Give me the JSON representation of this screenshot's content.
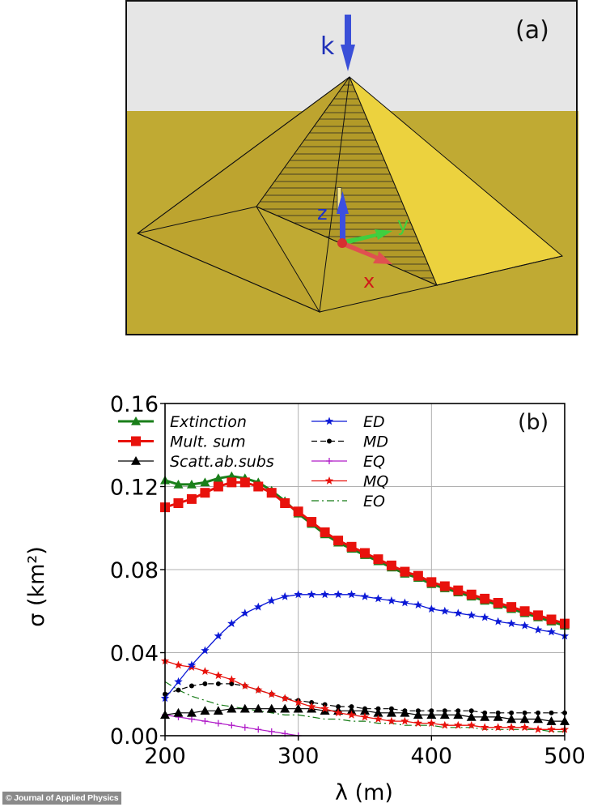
{
  "figure": {
    "panel_a": {
      "label": "(a)",
      "wave_vector_label": "k",
      "axis_labels": {
        "x": "x",
        "y": "y",
        "z": "z"
      },
      "colors": {
        "sky": "#e6e6e6",
        "ground": "#c0aa33",
        "pyramid_shaded": "#bfa62e",
        "pyramid_lit": "#ecd23e",
        "k_arrow": "#3a4fd8",
        "x_axis": "#d62828",
        "y_axis": "#3fcf3f",
        "z_axis": "#3c4fe0"
      }
    },
    "panel_b": {
      "label": "(b)"
    },
    "credit": "© Journal of Applied Physics"
  },
  "chart_data": {
    "type": "line",
    "title": "",
    "panel_label": "(b)",
    "xlabel": "λ (m)",
    "ylabel": "σ (km²)",
    "xlim": [
      200,
      500
    ],
    "ylim": [
      0.0,
      0.16
    ],
    "xticks": [
      200,
      300,
      400,
      500
    ],
    "xtick_labels": [
      "200",
      "300",
      "400",
      "500"
    ],
    "yticks": [
      0.0,
      0.04,
      0.08,
      0.12,
      0.16
    ],
    "ytick_labels": [
      "0.00",
      "0.04",
      "0.08",
      "0.12",
      "0.16"
    ],
    "grid": true,
    "legend_position": "upper left, two columns",
    "x": [
      200,
      210,
      220,
      230,
      240,
      250,
      260,
      270,
      280,
      290,
      300,
      310,
      320,
      330,
      340,
      350,
      360,
      370,
      380,
      390,
      400,
      410,
      420,
      430,
      440,
      450,
      460,
      470,
      480,
      490,
      500
    ],
    "series": [
      {
        "name": "Extinction",
        "legend": "Extinction",
        "color": "#1a7f1a",
        "marker": "triangle",
        "linestyle": "solid",
        "width": 3,
        "values": [
          0.123,
          0.121,
          0.121,
          0.122,
          0.124,
          0.125,
          0.124,
          0.122,
          0.118,
          0.113,
          0.107,
          0.102,
          0.097,
          0.093,
          0.09,
          0.087,
          0.084,
          0.081,
          0.078,
          0.076,
          0.073,
          0.071,
          0.069,
          0.067,
          0.065,
          0.063,
          0.061,
          0.059,
          0.057,
          0.055,
          0.053
        ]
      },
      {
        "name": "Mult. sum",
        "legend": "Mult. sum",
        "color": "#e8120c",
        "marker": "square",
        "linestyle": "solid",
        "width": 3,
        "values": [
          0.11,
          0.112,
          0.114,
          0.117,
          0.12,
          0.122,
          0.122,
          0.12,
          0.117,
          0.112,
          0.108,
          0.103,
          0.098,
          0.094,
          0.091,
          0.088,
          0.085,
          0.082,
          0.079,
          0.077,
          0.074,
          0.072,
          0.07,
          0.068,
          0.066,
          0.064,
          0.062,
          0.06,
          0.058,
          0.056,
          0.054
        ]
      },
      {
        "name": "Scatt. ab. subs",
        "legend": "Scatt.ab.subs",
        "color": "#000000",
        "marker": "triangle",
        "linestyle": "solid",
        "width": 1.2,
        "values": [
          0.01,
          0.011,
          0.011,
          0.012,
          0.012,
          0.013,
          0.013,
          0.013,
          0.013,
          0.013,
          0.013,
          0.013,
          0.012,
          0.012,
          0.012,
          0.012,
          0.011,
          0.011,
          0.011,
          0.01,
          0.01,
          0.01,
          0.01,
          0.009,
          0.009,
          0.009,
          0.008,
          0.008,
          0.008,
          0.007,
          0.007
        ]
      },
      {
        "name": "ED",
        "legend": "ED",
        "color": "#0b18d6",
        "marker": "star",
        "linestyle": "solid",
        "width": 1.3,
        "values": [
          0.018,
          0.026,
          0.034,
          0.041,
          0.048,
          0.054,
          0.059,
          0.062,
          0.065,
          0.067,
          0.068,
          0.068,
          0.068,
          0.068,
          0.068,
          0.067,
          0.066,
          0.065,
          0.064,
          0.063,
          0.061,
          0.06,
          0.059,
          0.058,
          0.057,
          0.055,
          0.054,
          0.053,
          0.051,
          0.05,
          0.048
        ]
      },
      {
        "name": "MD",
        "legend": "MD",
        "color": "#000000",
        "marker": "dot",
        "linestyle": "dashed",
        "width": 1.2,
        "values": [
          0.02,
          0.022,
          0.024,
          0.025,
          0.025,
          0.025,
          0.024,
          0.022,
          0.02,
          0.018,
          0.017,
          0.016,
          0.015,
          0.014,
          0.014,
          0.013,
          0.013,
          0.013,
          0.012,
          0.012,
          0.012,
          0.012,
          0.012,
          0.012,
          0.011,
          0.011,
          0.011,
          0.011,
          0.011,
          0.011,
          0.011
        ]
      },
      {
        "name": "EQ",
        "legend": "EQ",
        "color": "#b01cc8",
        "marker": "plus",
        "linestyle": "solid",
        "width": 1.2,
        "values": [
          0.01,
          0.009,
          0.008,
          0.007,
          0.006,
          0.005,
          0.004,
          0.003,
          0.002,
          0.001,
          0.0,
          0.0,
          0.0,
          0.0,
          0.0,
          0.0,
          0.0,
          0.0,
          0.0,
          0.0,
          0.0,
          0.0,
          0.0,
          0.0,
          0.0,
          0.0,
          0.0,
          0.0,
          0.0,
          0.0,
          0.0
        ]
      },
      {
        "name": "MQ",
        "legend": "MQ",
        "color": "#e8120c",
        "marker": "star",
        "linestyle": "solid",
        "width": 1.3,
        "values": [
          0.036,
          0.034,
          0.033,
          0.031,
          0.029,
          0.027,
          0.024,
          0.022,
          0.02,
          0.018,
          0.016,
          0.014,
          0.013,
          0.011,
          0.01,
          0.009,
          0.008,
          0.007,
          0.007,
          0.006,
          0.006,
          0.005,
          0.005,
          0.005,
          0.004,
          0.004,
          0.004,
          0.004,
          0.003,
          0.003,
          0.003
        ]
      },
      {
        "name": "EO",
        "legend": "EO",
        "color": "#157a15",
        "marker": "none",
        "linestyle": "dashdot",
        "width": 1.2,
        "values": [
          0.026,
          0.022,
          0.019,
          0.017,
          0.015,
          0.014,
          0.013,
          0.012,
          0.011,
          0.01,
          0.01,
          0.009,
          0.008,
          0.008,
          0.007,
          0.007,
          0.006,
          0.006,
          0.005,
          0.005,
          0.005,
          0.004,
          0.004,
          0.004,
          0.003,
          0.003,
          0.003,
          0.003,
          0.003,
          0.002,
          0.002
        ]
      }
    ]
  }
}
